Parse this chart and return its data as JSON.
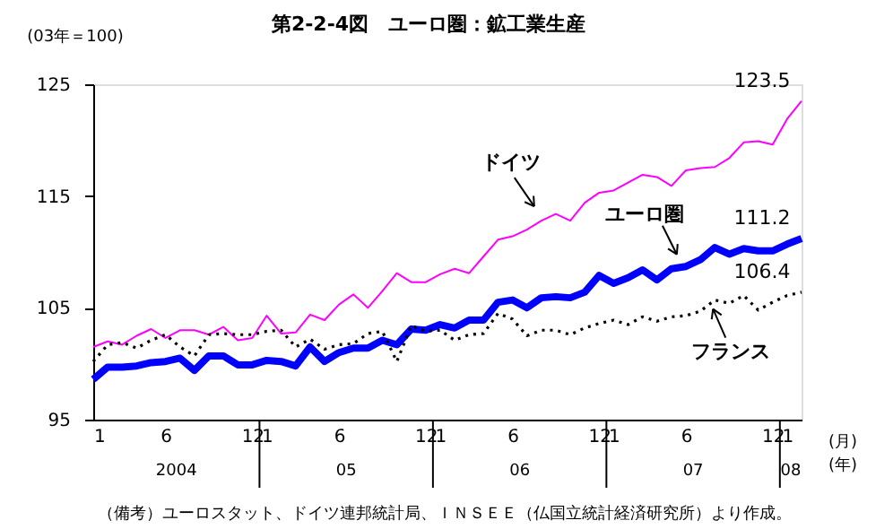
{
  "chart_data": {
    "type": "line",
    "title": "第2-2-4図　ユーロ圏：鉱工業生産",
    "categories": [
      "1",
      null,
      null,
      null,
      null,
      "6",
      null,
      null,
      null,
      null,
      null,
      "12",
      "1",
      null,
      null,
      null,
      null,
      "6",
      null,
      null,
      null,
      null,
      null,
      "12",
      "1",
      null,
      null,
      null,
      null,
      "6",
      null,
      null,
      null,
      null,
      null,
      "12",
      "1",
      null,
      null,
      null,
      null,
      "6",
      null,
      null,
      null,
      null,
      null,
      "12",
      "1",
      null
    ],
    "series": [
      {
        "name": "ドイツ",
        "color": "#ff00ff",
        "line_style": "solid",
        "values": [
          101.5,
          102.0,
          101.7,
          102.5,
          103.1,
          102.3,
          103.0,
          103.0,
          102.6,
          103.3,
          102.1,
          102.3,
          104.3,
          102.7,
          102.8,
          104.4,
          103.9,
          105.3,
          106.2,
          105.0,
          106.5,
          108.1,
          107.3,
          107.3,
          108.0,
          108.5,
          108.1,
          109.6,
          111.1,
          111.4,
          112.0,
          112.8,
          113.4,
          112.8,
          114.4,
          115.3,
          115.5,
          116.2,
          116.9,
          116.7,
          115.9,
          117.3,
          117.5,
          117.6,
          118.4,
          119.8,
          119.9,
          119.6,
          121.9,
          123.5
        ],
        "value_labels": [
          null,
          null,
          null,
          null,
          null,
          null,
          null,
          null,
          null,
          null,
          null,
          null,
          null,
          null,
          null,
          null,
          null,
          null,
          null,
          null,
          null,
          null,
          null,
          null,
          null,
          null,
          null,
          null,
          null,
          null,
          null,
          null,
          null,
          null,
          null,
          null,
          null,
          null,
          null,
          null,
          null,
          null,
          null,
          null,
          null,
          null,
          null,
          null,
          null,
          "123.5"
        ]
      },
      {
        "name": "ユーロ圏",
        "color": "#0000ff",
        "line_style": "solid",
        "values": [
          98.6,
          99.7,
          99.7,
          99.8,
          100.1,
          100.2,
          100.5,
          99.4,
          100.7,
          100.7,
          99.9,
          99.9,
          100.3,
          100.2,
          99.8,
          101.5,
          100.2,
          101.0,
          101.4,
          101.4,
          102.1,
          101.7,
          103.1,
          103.0,
          103.5,
          103.2,
          103.9,
          103.9,
          105.5,
          105.7,
          105.0,
          105.9,
          106.0,
          105.9,
          106.4,
          107.9,
          107.2,
          107.7,
          108.4,
          107.5,
          108.5,
          108.7,
          109.3,
          110.4,
          109.8,
          110.3,
          110.1,
          110.1,
          110.7,
          111.2
        ],
        "value_labels": [
          null,
          null,
          null,
          null,
          null,
          null,
          null,
          null,
          null,
          null,
          null,
          null,
          null,
          null,
          null,
          null,
          null,
          null,
          null,
          null,
          null,
          null,
          null,
          null,
          null,
          null,
          null,
          null,
          null,
          null,
          null,
          null,
          null,
          null,
          null,
          null,
          null,
          null,
          null,
          null,
          null,
          null,
          null,
          null,
          null,
          null,
          null,
          null,
          null,
          "111.2"
        ]
      },
      {
        "name": "フランス",
        "color": "#000000",
        "line_style": "dotted",
        "values": [
          100.2,
          101.7,
          101.9,
          101.4,
          102.1,
          102.6,
          101.5,
          100.7,
          102.6,
          102.7,
          102.6,
          102.6,
          102.9,
          103.0,
          101.5,
          102.2,
          101.3,
          101.7,
          101.8,
          102.7,
          102.9,
          100.2,
          103.4,
          102.9,
          103.0,
          102.1,
          102.6,
          102.7,
          104.5,
          104.0,
          102.5,
          103.0,
          103.0,
          102.6,
          103.2,
          103.6,
          103.9,
          103.5,
          104.2,
          103.8,
          104.2,
          104.3,
          104.7,
          105.7,
          105.4,
          106.1,
          104.8,
          105.5,
          106.1,
          106.4
        ],
        "value_labels": [
          null,
          null,
          null,
          null,
          null,
          null,
          null,
          null,
          null,
          null,
          null,
          null,
          null,
          null,
          null,
          null,
          null,
          null,
          null,
          null,
          null,
          null,
          null,
          null,
          null,
          null,
          null,
          null,
          null,
          null,
          null,
          null,
          null,
          null,
          null,
          null,
          null,
          null,
          null,
          null,
          null,
          null,
          null,
          null,
          null,
          null,
          null,
          null,
          null,
          "106.4"
        ]
      }
    ],
    "ylim": [
      95,
      125
    ],
    "yticks": [
      95,
      105,
      115,
      125
    ],
    "grid": false,
    "marker": "none",
    "annotations": [
      "(03年＝100)",
      "2004",
      "05",
      "06",
      "07",
      "08",
      "(月)",
      "(年)",
      "（備考）ユーロスタット、ドイツ連邦統計局、ＩＮＳＥＥ（仏国立統計経済研究所）より作成。"
    ]
  }
}
